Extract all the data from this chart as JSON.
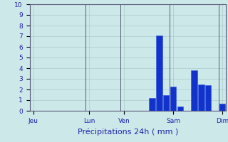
{
  "title": "",
  "xlabel": "Précipitations 24h ( mm )",
  "ylabel": "",
  "background_color": "#cce8e8",
  "bar_color": "#1133cc",
  "bar_edge_color": "#3355dd",
  "grid_color": "#aacccc",
  "axis_line_color": "#555577",
  "text_color": "#2222aa",
  "ylim": [
    0,
    10
  ],
  "yticks": [
    0,
    1,
    2,
    3,
    4,
    5,
    6,
    7,
    8,
    9,
    10
  ],
  "num_bars": 28,
  "x_positions": [
    0,
    1,
    2,
    3,
    4,
    5,
    6,
    7,
    8,
    9,
    10,
    11,
    12,
    13,
    14,
    15,
    16,
    17,
    18,
    19,
    20,
    21,
    22,
    23,
    24,
    25,
    26,
    27
  ],
  "bar_values": [
    0,
    0,
    0,
    0,
    0,
    0,
    0,
    0,
    0,
    0,
    0,
    0,
    0,
    0,
    0,
    0,
    0,
    1.2,
    7.1,
    1.5,
    2.3,
    0.4,
    0,
    3.8,
    2.5,
    2.4,
    0,
    0.7
  ],
  "tick_positions": [
    0,
    8,
    13,
    20,
    27
  ],
  "tick_labels": [
    "Jeu",
    "Lun",
    "Ven",
    "Sam",
    "Dim"
  ],
  "bar_width": 0.85,
  "vline_positions": [
    0,
    8,
    13,
    20,
    27
  ]
}
